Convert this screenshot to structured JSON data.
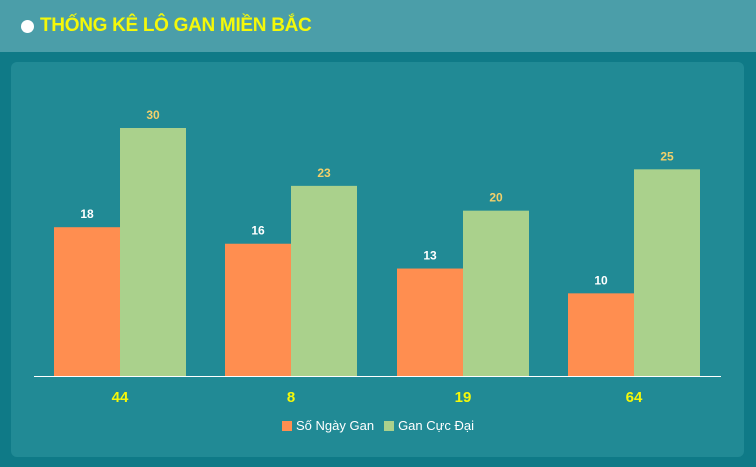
{
  "header": {
    "title": "THỐNG KÊ LÔ GAN MIỀN BẮC"
  },
  "colors": {
    "series_1": "#ff8e50",
    "series_2": "#aad18c",
    "value_label_1": "#ffffff",
    "value_label_2": "#f2d06a",
    "category_label": "#f4f80a",
    "title": "#f4f80a"
  },
  "chart_data": {
    "type": "bar",
    "categories": [
      "44",
      "8",
      "19",
      "64"
    ],
    "series": [
      {
        "name": "Số Ngày Gan",
        "values": [
          18,
          16,
          13,
          10
        ]
      },
      {
        "name": "Gan Cực Đại",
        "values": [
          30,
          23,
          20,
          25
        ]
      }
    ],
    "ylim": [
      0,
      30
    ],
    "grid": false,
    "legend_position": "bottom"
  }
}
